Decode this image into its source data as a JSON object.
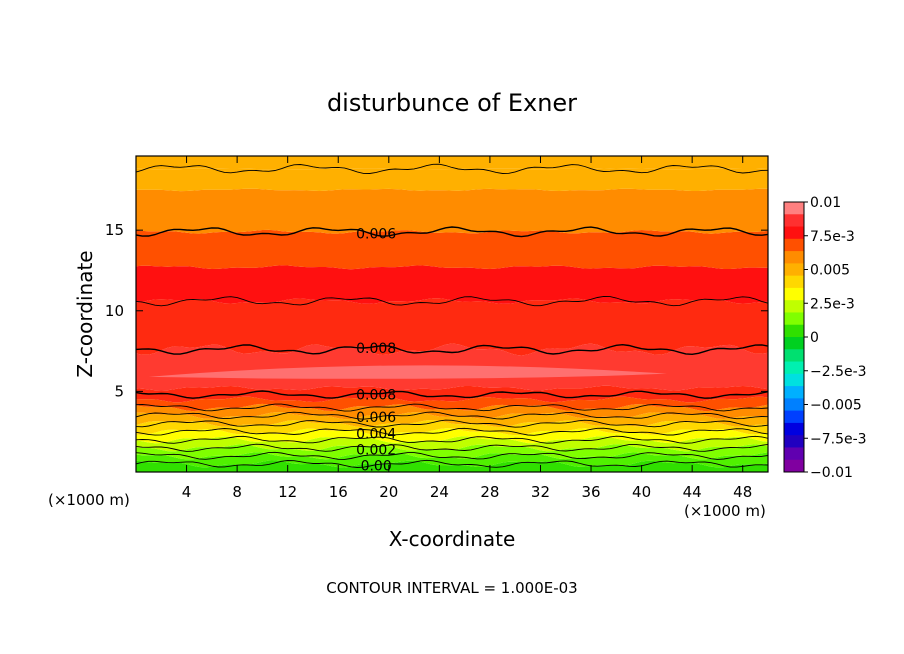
{
  "chart_data": {
    "type": "contour",
    "title": "disturbunce of Exner",
    "xlabel": "X-coordinate",
    "ylabel": "Z-coordinate",
    "x_unit_left": "(×1000 m)",
    "x_unit_right": "(×1000 m)",
    "footer": "CONTOUR INTERVAL = 1.000E-03",
    "xlim": [
      0,
      50
    ],
    "ylim": [
      0,
      19.6
    ],
    "x_ticks": [
      4,
      8,
      12,
      16,
      20,
      24,
      28,
      32,
      36,
      40,
      44,
      48
    ],
    "y_ticks": [
      5,
      10,
      15
    ],
    "grid": false,
    "contour_interval": 0.001,
    "levels": [
      0.0,
      0.001,
      0.002,
      0.003,
      0.004,
      0.005,
      0.006,
      0.007,
      0.008,
      0.0085,
      0.008,
      0.007,
      0.006,
      0.005,
      0.004
    ],
    "contour_labels": [
      {
        "text": "0.006",
        "x": 19,
        "z": 14.8
      },
      {
        "text": "0.008",
        "x": 19,
        "z": 7.7
      },
      {
        "text": "0.008",
        "x": 19,
        "z": 4.8
      },
      {
        "text": "0.006",
        "x": 19,
        "z": 3.4
      },
      {
        "text": "0.004",
        "x": 19,
        "z": 2.4
      },
      {
        "text": "0.002",
        "x": 19,
        "z": 1.4
      },
      {
        "text": "0.00",
        "x": 19,
        "z": 0.4
      }
    ],
    "colorbar": {
      "labels": [
        "0.01",
        "7.5e-3",
        "0.005",
        "2.5e-3",
        "0",
        "−2.5e-3",
        "−0.005",
        "−7.5e-3",
        "−0.01"
      ],
      "colors": [
        "#ff8080",
        "#ff3030",
        "#ff1010",
        "#ff5000",
        "#ff8c00",
        "#ffb000",
        "#ffd800",
        "#ffff00",
        "#c0ff00",
        "#80ff00",
        "#30e000",
        "#00d020",
        "#00e070",
        "#00f0b0",
        "#00e0e0",
        "#00b0ff",
        "#0080ff",
        "#0040ff",
        "#0000e0",
        "#2000c0",
        "#6000b0",
        "#8000a0"
      ]
    }
  }
}
